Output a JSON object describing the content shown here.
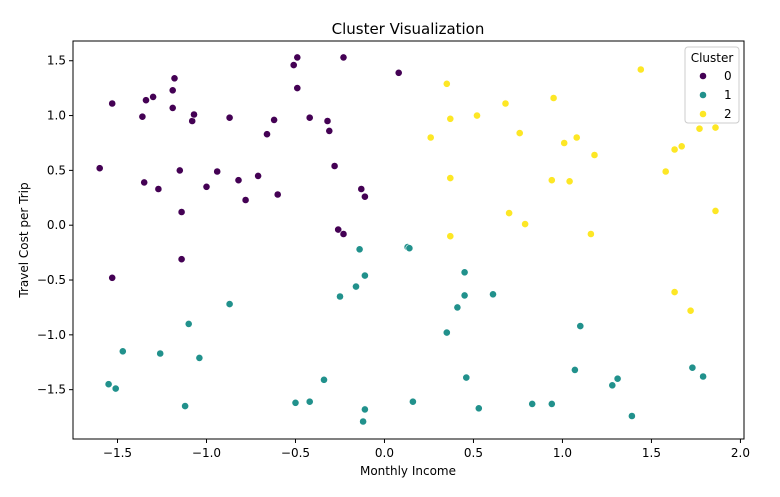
{
  "chart_data": {
    "type": "scatter",
    "title": "Cluster Visualization",
    "xlabel": "Monthly Income",
    "ylabel": "Travel Cost per Trip",
    "xlim": [
      -1.75,
      2.02
    ],
    "ylim": [
      -1.95,
      1.68
    ],
    "xticks": [
      -1.5,
      -1.0,
      -0.5,
      0.0,
      0.5,
      1.0,
      1.5,
      2.0
    ],
    "xtick_labels": [
      "−1.5",
      "−1.0",
      "−0.5",
      "0.0",
      "0.5",
      "1.0",
      "1.5",
      "2.0"
    ],
    "yticks": [
      -1.5,
      -1.0,
      -0.5,
      0.0,
      0.5,
      1.0,
      1.5
    ],
    "ytick_labels": [
      "−1.5",
      "−1.0",
      "−0.5",
      "0.0",
      "0.5",
      "1.0",
      "1.5"
    ],
    "grid": false,
    "legend": {
      "title": "Cluster",
      "placement": "top-right"
    },
    "series": [
      {
        "name": "0",
        "color": "#440154",
        "points": [
          [
            -1.6,
            0.52
          ],
          [
            -1.53,
            1.11
          ],
          [
            -1.53,
            -0.48
          ],
          [
            -1.36,
            0.99
          ],
          [
            -1.35,
            0.39
          ],
          [
            -1.34,
            1.14
          ],
          [
            -1.3,
            1.17
          ],
          [
            -1.27,
            0.33
          ],
          [
            -1.19,
            1.23
          ],
          [
            -1.19,
            1.07
          ],
          [
            -1.18,
            1.34
          ],
          [
            -1.15,
            0.5
          ],
          [
            -1.14,
            0.12
          ],
          [
            -1.14,
            -0.31
          ],
          [
            -1.08,
            0.95
          ],
          [
            -1.07,
            1.01
          ],
          [
            -1.0,
            0.35
          ],
          [
            -0.94,
            0.49
          ],
          [
            -0.87,
            0.98
          ],
          [
            -0.82,
            0.41
          ],
          [
            -0.78,
            0.23
          ],
          [
            -0.71,
            0.45
          ],
          [
            -0.66,
            0.83
          ],
          [
            -0.62,
            0.96
          ],
          [
            -0.6,
            0.28
          ],
          [
            -0.51,
            1.46
          ],
          [
            -0.49,
            1.53
          ],
          [
            -0.49,
            1.25
          ],
          [
            -0.42,
            0.98
          ],
          [
            -0.32,
            0.95
          ],
          [
            -0.31,
            0.86
          ],
          [
            -0.28,
            0.54
          ],
          [
            -0.26,
            -0.04
          ],
          [
            -0.23,
            1.53
          ],
          [
            -0.23,
            -0.08
          ],
          [
            -0.13,
            0.33
          ],
          [
            -0.11,
            0.26
          ],
          [
            0.08,
            1.39
          ]
        ]
      },
      {
        "name": "1",
        "color": "#21918c",
        "points": [
          [
            -1.55,
            -1.45
          ],
          [
            -1.51,
            -1.49
          ],
          [
            -1.47,
            -1.15
          ],
          [
            -1.26,
            -1.17
          ],
          [
            -1.12,
            -1.65
          ],
          [
            -1.1,
            -0.9
          ],
          [
            -1.04,
            -1.21
          ],
          [
            -0.87,
            -0.72
          ],
          [
            -0.5,
            -1.62
          ],
          [
            -0.42,
            -1.61
          ],
          [
            -0.34,
            -1.41
          ],
          [
            -0.25,
            -0.65
          ],
          [
            -0.16,
            -0.56
          ],
          [
            -0.14,
            -0.22
          ],
          [
            -0.11,
            -0.46
          ],
          [
            -0.12,
            -1.79
          ],
          [
            -0.11,
            -1.68
          ],
          [
            0.13,
            -0.2
          ],
          [
            0.14,
            -0.21
          ],
          [
            0.16,
            -1.61
          ],
          [
            0.35,
            -0.98
          ],
          [
            0.41,
            -0.75
          ],
          [
            0.45,
            -0.43
          ],
          [
            0.45,
            -0.64
          ],
          [
            0.46,
            -1.39
          ],
          [
            0.53,
            -1.67
          ],
          [
            0.61,
            -0.63
          ],
          [
            0.83,
            -1.63
          ],
          [
            0.94,
            -1.63
          ],
          [
            1.07,
            -1.32
          ],
          [
            1.1,
            -0.92
          ],
          [
            1.28,
            -1.46
          ],
          [
            1.31,
            -1.4
          ],
          [
            1.39,
            -1.74
          ],
          [
            1.73,
            -1.3
          ],
          [
            1.79,
            -1.38
          ]
        ]
      },
      {
        "name": "2",
        "color": "#fde725",
        "points": [
          [
            0.26,
            0.8
          ],
          [
            0.35,
            1.29
          ],
          [
            0.37,
            0.97
          ],
          [
            0.37,
            0.43
          ],
          [
            0.37,
            -0.1
          ],
          [
            0.52,
            1.0
          ],
          [
            0.68,
            1.11
          ],
          [
            0.7,
            0.11
          ],
          [
            0.76,
            0.84
          ],
          [
            0.79,
            0.01
          ],
          [
            0.94,
            0.41
          ],
          [
            0.95,
            1.16
          ],
          [
            1.01,
            0.75
          ],
          [
            1.04,
            0.4
          ],
          [
            1.08,
            0.8
          ],
          [
            1.16,
            -0.08
          ],
          [
            1.18,
            0.64
          ],
          [
            1.44,
            1.42
          ],
          [
            1.58,
            0.49
          ],
          [
            1.63,
            0.69
          ],
          [
            1.63,
            -0.61
          ],
          [
            1.67,
            0.72
          ],
          [
            1.72,
            -0.78
          ],
          [
            1.77,
            0.88
          ],
          [
            1.86,
            0.89
          ],
          [
            1.86,
            0.13
          ]
        ]
      }
    ]
  }
}
